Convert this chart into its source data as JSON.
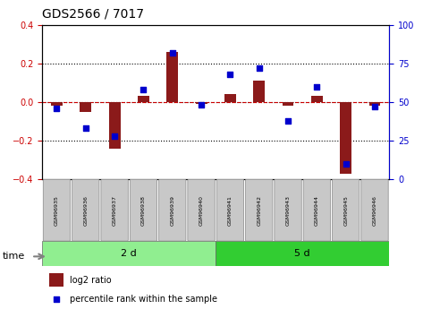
{
  "title": "GDS2566 / 7017",
  "samples": [
    "GSM96935",
    "GSM96936",
    "GSM96937",
    "GSM96938",
    "GSM96939",
    "GSM96940",
    "GSM96941",
    "GSM96942",
    "GSM96943",
    "GSM96944",
    "GSM96945",
    "GSM96946"
  ],
  "log2_ratio": [
    -0.02,
    -0.05,
    -0.24,
    0.03,
    0.26,
    -0.01,
    0.04,
    0.11,
    -0.02,
    0.03,
    -0.37,
    -0.02
  ],
  "pct_rank": [
    46,
    33,
    28,
    58,
    82,
    48,
    68,
    72,
    38,
    60,
    10,
    47
  ],
  "groups": [
    {
      "label": "2 d",
      "start": 0,
      "end": 6,
      "color": "#90EE90"
    },
    {
      "label": "5 d",
      "start": 6,
      "end": 12,
      "color": "#32CD32"
    }
  ],
  "bar_color": "#8B1A1A",
  "dot_color": "#0000CD",
  "ylim_left": [
    -0.4,
    0.4
  ],
  "ylim_right": [
    0,
    100
  ],
  "yticks_left": [
    -0.4,
    -0.2,
    0.0,
    0.2,
    0.4
  ],
  "yticks_right": [
    0,
    25,
    50,
    75,
    100
  ],
  "ylabel_left_color": "#CC0000",
  "ylabel_right_color": "#0000CD",
  "background_color": "#ffffff",
  "plot_bg_color": "#ffffff",
  "time_label": "time",
  "legend_bar_label": "log2 ratio",
  "legend_dot_label": "percentile rank within the sample"
}
